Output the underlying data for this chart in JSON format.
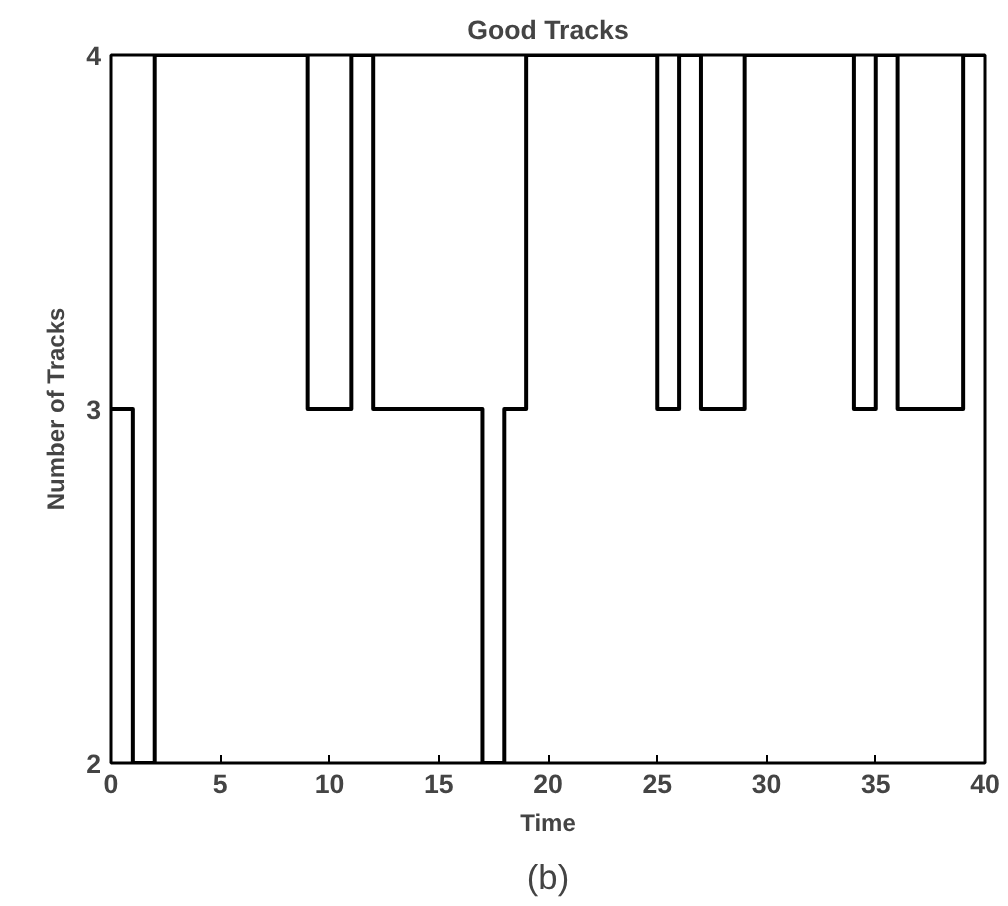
{
  "chart_data": {
    "type": "step",
    "title": "Good Tracks",
    "xlabel": "Time",
    "ylabel": "Number of Tracks",
    "x": [
      0,
      1,
      2,
      9,
      11,
      12,
      17,
      18,
      19,
      25,
      26,
      27,
      29,
      34,
      35,
      36,
      39,
      40
    ],
    "series": [
      {
        "color": "#000000",
        "values": [
          3,
          2,
          4,
          3,
          4,
          3,
          2,
          3,
          4,
          3,
          4,
          3,
          4,
          3,
          4,
          3,
          4,
          4
        ]
      }
    ],
    "xlim": [
      0,
      40
    ],
    "ylim": [
      2,
      4
    ],
    "xticks": [
      0,
      5,
      10,
      15,
      20,
      25,
      30,
      35,
      40
    ],
    "yticks": [
      2,
      3,
      4
    ],
    "grid": false,
    "annotations": [
      "(b)"
    ]
  }
}
